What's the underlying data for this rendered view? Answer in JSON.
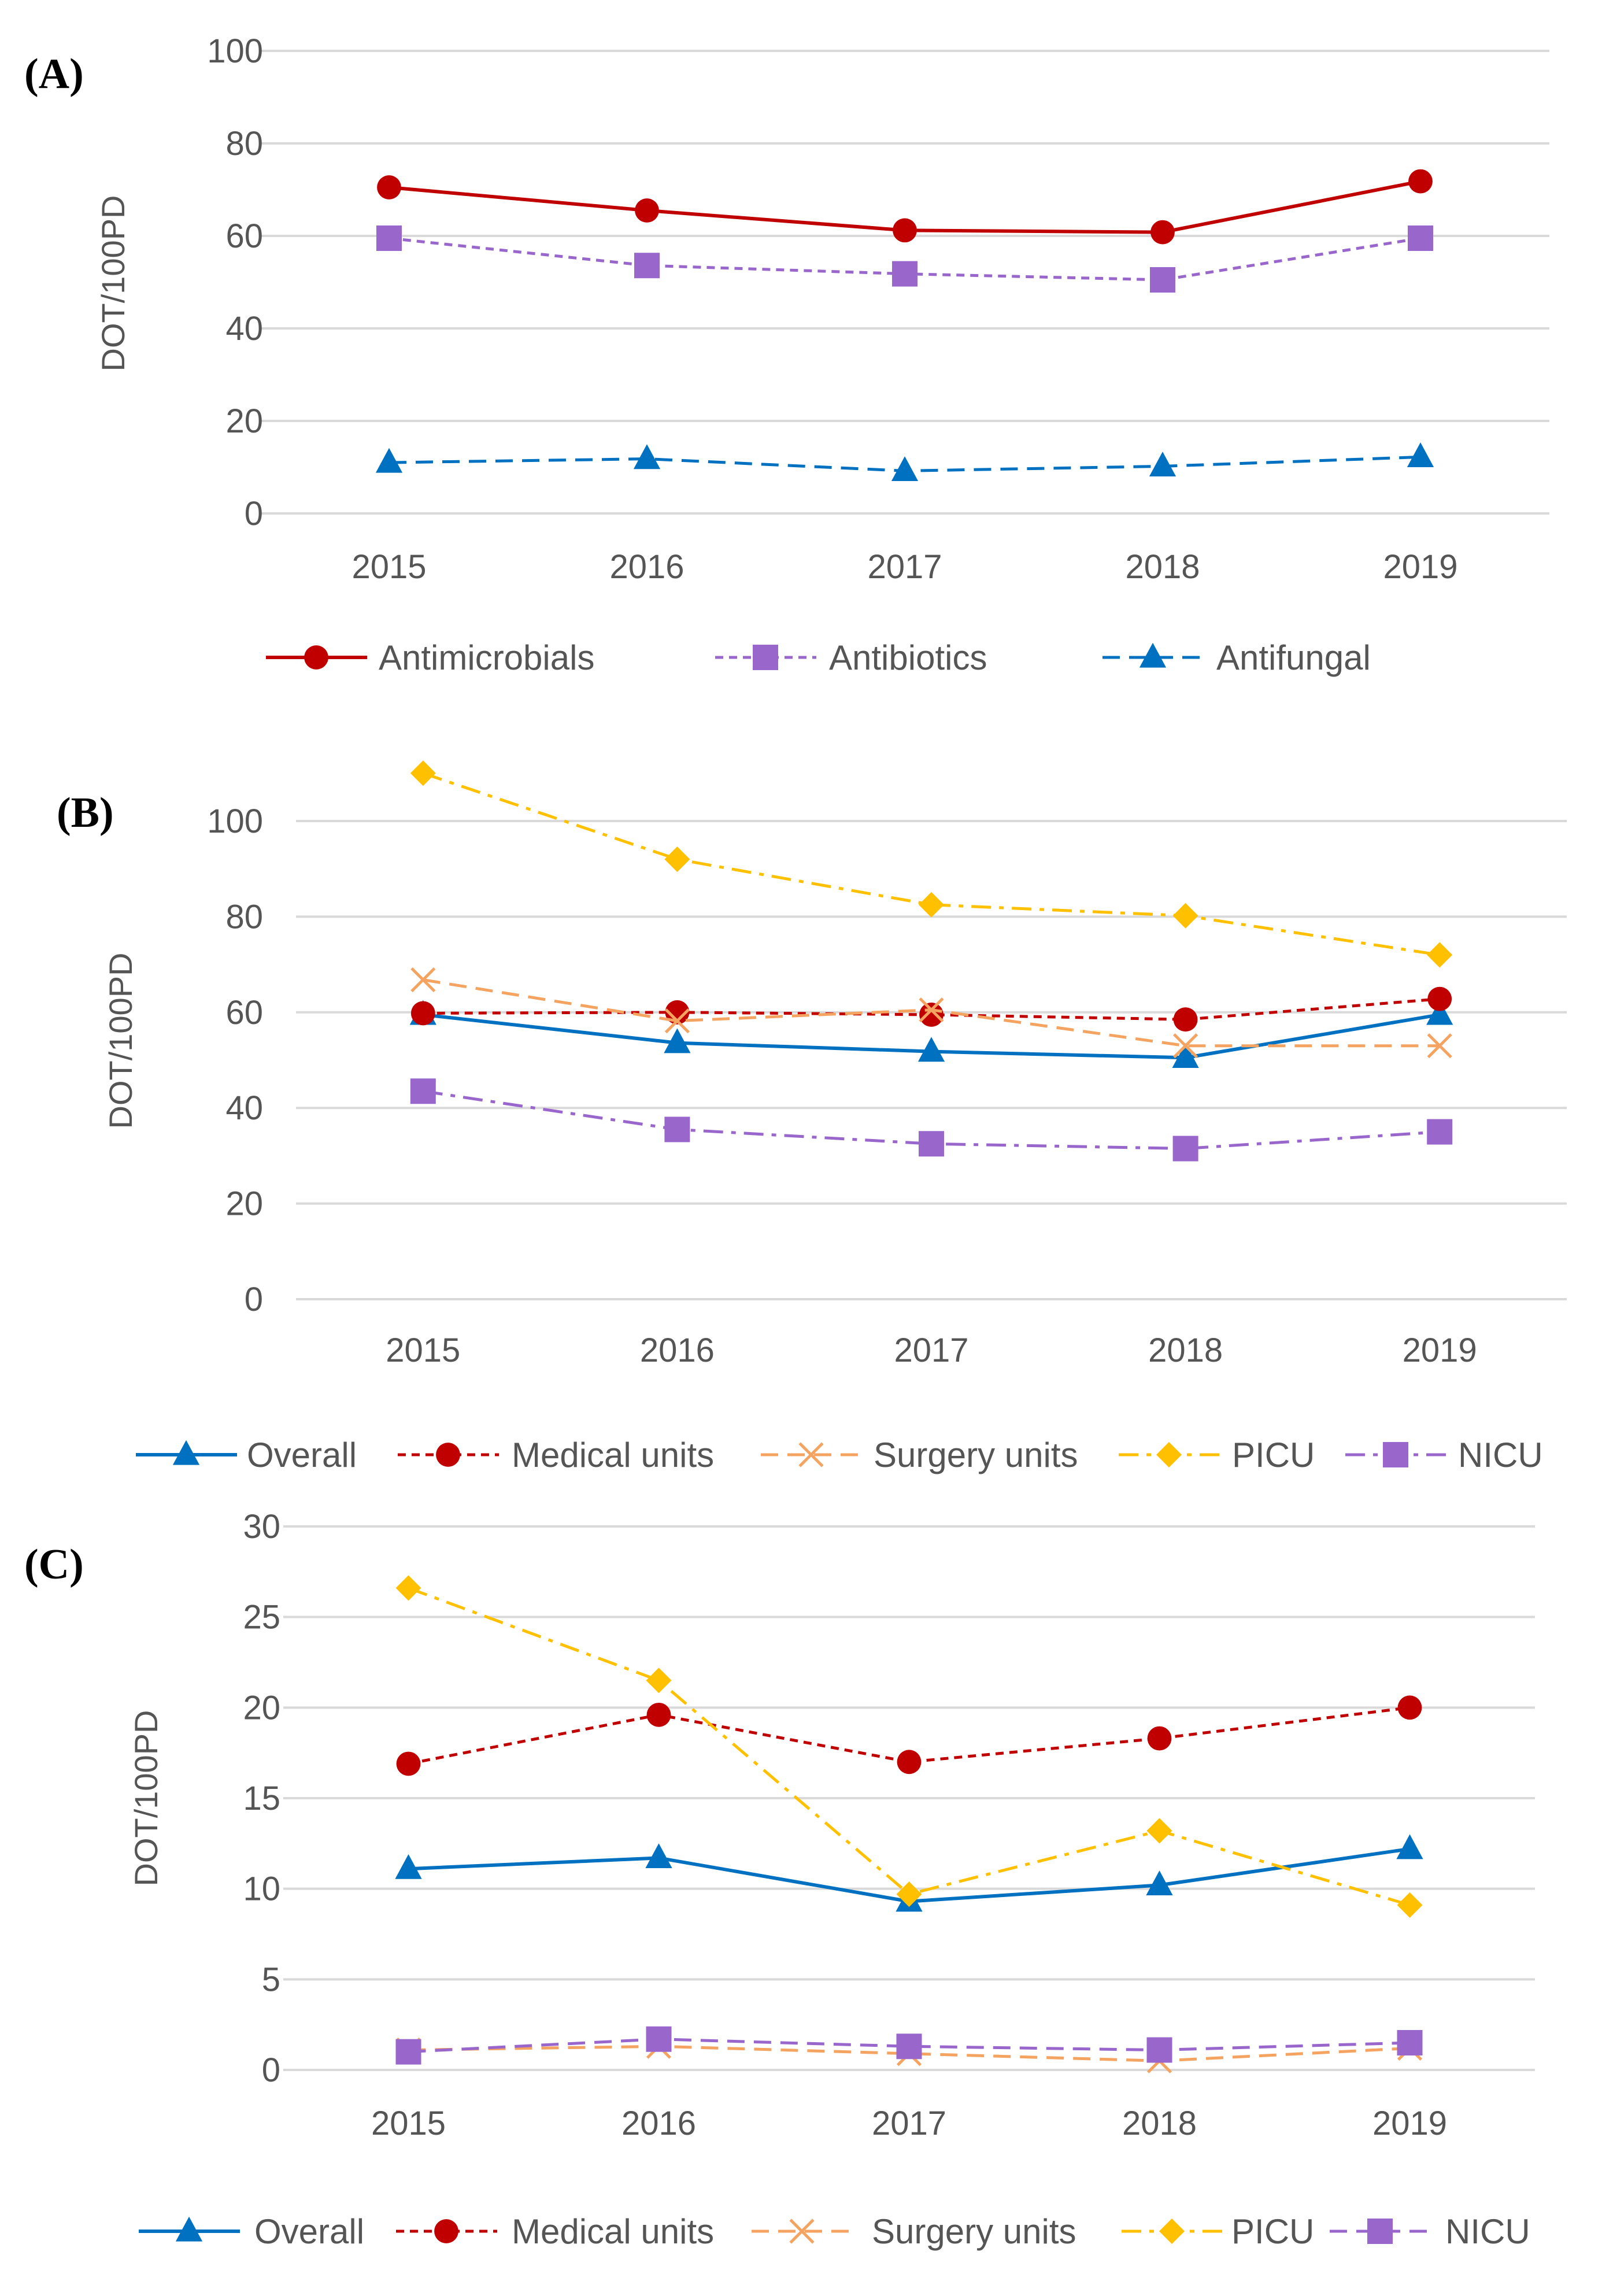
{
  "chart_data": [
    {
      "panel": "(A)",
      "type": "line",
      "ylabel": "DOT/100PD",
      "ylim": [
        0,
        100
      ],
      "yticks": [
        0,
        20,
        40,
        60,
        80,
        100
      ],
      "categories": [
        "2015",
        "2016",
        "2017",
        "2018",
        "2019"
      ],
      "series": [
        {
          "name": "Antimicrobials",
          "values": [
            70.5,
            65.5,
            61.2,
            60.8,
            71.8
          ],
          "color": "#C00000",
          "marker": "circle",
          "dash": "solid"
        },
        {
          "name": "Antibiotics",
          "values": [
            59.5,
            53.6,
            51.8,
            50.5,
            59.5
          ],
          "color": "#9966CC",
          "marker": "square",
          "dash": "dot"
        },
        {
          "name": "Antifungal",
          "values": [
            11.0,
            11.8,
            9.2,
            10.2,
            12.2
          ],
          "color": "#0070C0",
          "marker": "triangle",
          "dash": "dash"
        }
      ]
    },
    {
      "panel": "(B)",
      "type": "line",
      "ylabel": "DOT/100PD",
      "ylim": [
        0,
        100
      ],
      "yticks": [
        0,
        20,
        40,
        60,
        80,
        100
      ],
      "categories": [
        "2015",
        "2016",
        "2017",
        "2018",
        "2019"
      ],
      "series": [
        {
          "name": "Overall",
          "values": [
            59.5,
            53.6,
            51.8,
            50.5,
            59.5
          ],
          "color": "#0070C0",
          "marker": "triangle",
          "dash": "solid"
        },
        {
          "name": "Medical units",
          "values": [
            59.8,
            60.0,
            59.5,
            58.5,
            62.8
          ],
          "color": "#C00000",
          "marker": "circle",
          "dash": "dot"
        },
        {
          "name": "Surgery units",
          "values": [
            66.8,
            58.2,
            60.5,
            53.0,
            53.0
          ],
          "color": "#F4A460",
          "marker": "x",
          "dash": "dash"
        },
        {
          "name": "PICU",
          "values": [
            110.0,
            92.0,
            82.5,
            80.2,
            72.0
          ],
          "color": "#FFC000",
          "marker": "diamond",
          "dash": "dashdot"
        },
        {
          "name": "NICU",
          "values": [
            43.5,
            35.5,
            32.5,
            31.5,
            35.0
          ],
          "color": "#9966CC",
          "marker": "square",
          "dash": "dashdot"
        }
      ]
    },
    {
      "panel": "(C)",
      "type": "line",
      "ylabel": "DOT/100PD",
      "ylim": [
        0,
        30
      ],
      "yticks": [
        0,
        5,
        10,
        15,
        20,
        25,
        30
      ],
      "categories": [
        "2015",
        "2016",
        "2017",
        "2018",
        "2019"
      ],
      "series": [
        {
          "name": "Overall",
          "values": [
            11.1,
            11.7,
            9.3,
            10.2,
            12.2
          ],
          "color": "#0070C0",
          "marker": "triangle",
          "dash": "solid"
        },
        {
          "name": "Medical units",
          "values": [
            16.9,
            19.6,
            17.0,
            18.3,
            20.0
          ],
          "color": "#C00000",
          "marker": "circle",
          "dash": "dot"
        },
        {
          "name": "Surgery units",
          "values": [
            1.1,
            1.3,
            0.9,
            0.5,
            1.2
          ],
          "color": "#F4A460",
          "marker": "x",
          "dash": "dash"
        },
        {
          "name": "PICU",
          "values": [
            26.6,
            21.5,
            9.7,
            13.2,
            9.1
          ],
          "color": "#FFC000",
          "marker": "diamond",
          "dash": "dashdot"
        },
        {
          "name": "NICU",
          "values": [
            1.0,
            1.7,
            1.3,
            1.1,
            1.5
          ],
          "color": "#9966CC",
          "marker": "square",
          "dash": "dash"
        }
      ]
    }
  ]
}
